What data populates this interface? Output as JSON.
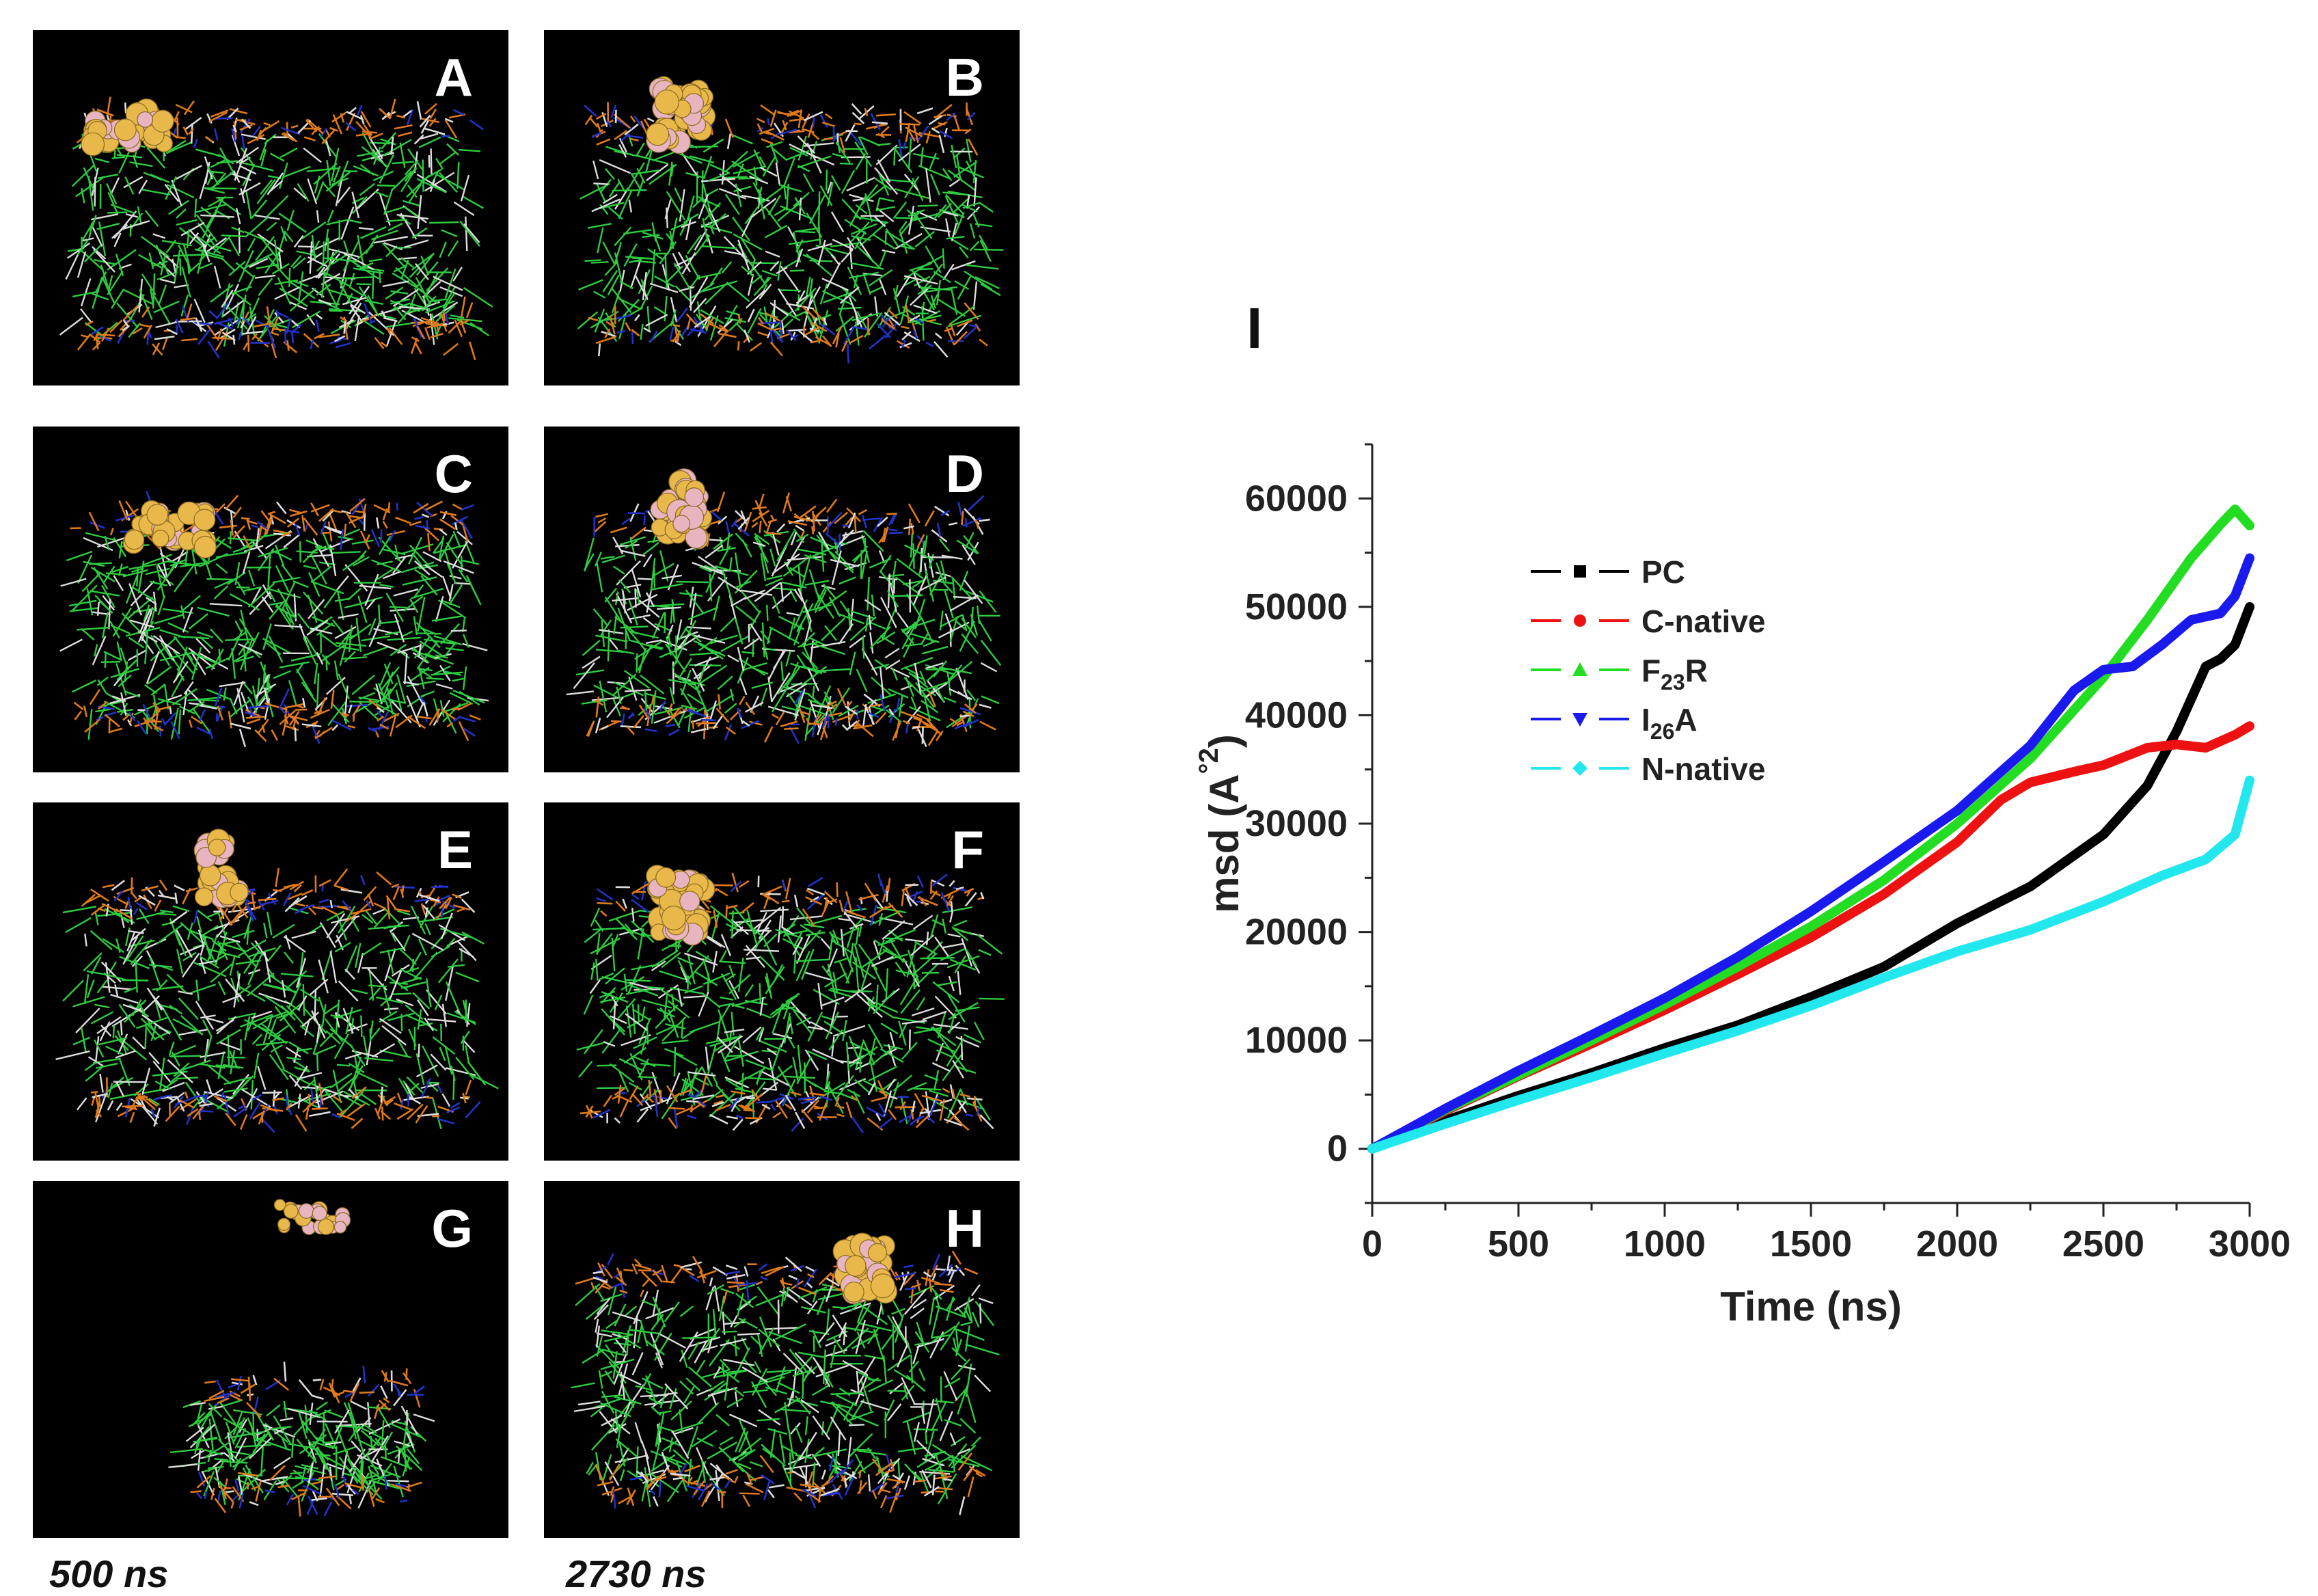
{
  "panels": [
    {
      "label": "A",
      "membrane": "large",
      "peptide": "left-top"
    },
    {
      "label": "B",
      "membrane": "large",
      "peptide": "top-left"
    },
    {
      "label": "C",
      "membrane": "large",
      "peptide": "left-top"
    },
    {
      "label": "D",
      "membrane": "large",
      "peptide": "top-left"
    },
    {
      "label": "E",
      "membrane": "large",
      "peptide": "top"
    },
    {
      "label": "F",
      "membrane": "large",
      "peptide": "top-left"
    },
    {
      "label": "G",
      "membrane": "small",
      "peptide": "detached"
    },
    {
      "label": "H",
      "membrane": "large",
      "peptide": "top-center"
    }
  ],
  "time_labels": {
    "left": "500 ns",
    "right": "2730 ns"
  },
  "chart_label": "I",
  "colors": {
    "lipid_tail": "#2ecc40",
    "lipid_head_orange": "#e07a1a",
    "lipid_head_blue": "#2233cc",
    "lipid_white": "#dddddd",
    "peptide_gold": "#e8b84a",
    "peptide_pink": "#e8b4c0"
  },
  "chart_data": {
    "type": "line",
    "title": "",
    "xlabel": "Time (ns)",
    "ylabel": "msd (Å²)",
    "ylabel_main": "msd (A",
    "ylabel_sup": "°2",
    "ylabel_close": ")",
    "xlim": [
      0,
      3000
    ],
    "ylim": [
      -5000,
      65000
    ],
    "xticks": [
      0,
      500,
      1000,
      1500,
      2000,
      2500,
      3000
    ],
    "yticks": [
      0,
      10000,
      20000,
      30000,
      40000,
      50000,
      60000
    ],
    "series": [
      {
        "name": "PC",
        "name_main": "PC",
        "name_sub": "",
        "name_after": "",
        "color": "#000000",
        "marker": "square",
        "points": [
          [
            0,
            0
          ],
          [
            250,
            2600
          ],
          [
            500,
            4900
          ],
          [
            750,
            7000
          ],
          [
            1000,
            9300
          ],
          [
            1250,
            11400
          ],
          [
            1500,
            14000
          ],
          [
            1750,
            16800
          ],
          [
            2000,
            20800
          ],
          [
            2250,
            24200
          ],
          [
            2500,
            29000
          ],
          [
            2650,
            33500
          ],
          [
            2750,
            38500
          ],
          [
            2850,
            44500
          ],
          [
            2900,
            45200
          ],
          [
            2950,
            46500
          ],
          [
            3000,
            50000
          ]
        ]
      },
      {
        "name": "C-native",
        "name_main": "C-native",
        "name_sub": "",
        "name_after": "",
        "color": "#ee1111",
        "marker": "circle",
        "points": [
          [
            0,
            0
          ],
          [
            250,
            3500
          ],
          [
            500,
            6700
          ],
          [
            750,
            9700
          ],
          [
            1000,
            12800
          ],
          [
            1250,
            16100
          ],
          [
            1500,
            19500
          ],
          [
            1750,
            23500
          ],
          [
            2000,
            28300
          ],
          [
            2150,
            32200
          ],
          [
            2250,
            33800
          ],
          [
            2400,
            34800
          ],
          [
            2500,
            35400
          ],
          [
            2650,
            37000
          ],
          [
            2750,
            37300
          ],
          [
            2850,
            37000
          ],
          [
            2950,
            38200
          ],
          [
            3000,
            39000
          ]
        ]
      },
      {
        "name": "F23R",
        "name_main": "F",
        "name_sub": "23",
        "name_after": "R",
        "color": "#22dd22",
        "marker": "triangle-up",
        "points": [
          [
            0,
            0
          ],
          [
            250,
            3600
          ],
          [
            500,
            6800
          ],
          [
            750,
            10000
          ],
          [
            1000,
            13300
          ],
          [
            1250,
            16800
          ],
          [
            1500,
            20500
          ],
          [
            1750,
            24800
          ],
          [
            2000,
            30000
          ],
          [
            2250,
            36000
          ],
          [
            2500,
            43500
          ],
          [
            2650,
            48800
          ],
          [
            2800,
            54500
          ],
          [
            2900,
            57600
          ],
          [
            2950,
            59000
          ],
          [
            3000,
            57500
          ]
        ]
      },
      {
        "name": "I26A",
        "name_main": "I",
        "name_sub": "26",
        "name_after": "A",
        "color": "#1a1aee",
        "marker": "triangle-down",
        "points": [
          [
            0,
            0
          ],
          [
            250,
            3700
          ],
          [
            500,
            7200
          ],
          [
            750,
            10500
          ],
          [
            1000,
            13900
          ],
          [
            1250,
            17700
          ],
          [
            1500,
            21900
          ],
          [
            1750,
            26500
          ],
          [
            2000,
            31200
          ],
          [
            2250,
            37200
          ],
          [
            2400,
            42300
          ],
          [
            2500,
            44200
          ],
          [
            2600,
            44500
          ],
          [
            2700,
            46500
          ],
          [
            2800,
            48800
          ],
          [
            2900,
            49400
          ],
          [
            2950,
            51000
          ],
          [
            3000,
            54500
          ]
        ]
      },
      {
        "name": "N-native",
        "name_main": "N-native",
        "name_sub": "",
        "name_after": "",
        "color": "#22e8ee",
        "marker": "diamond",
        "points": [
          [
            0,
            0
          ],
          [
            250,
            2300
          ],
          [
            500,
            4500
          ],
          [
            750,
            6600
          ],
          [
            1000,
            8800
          ],
          [
            1250,
            10900
          ],
          [
            1500,
            13200
          ],
          [
            1750,
            15800
          ],
          [
            2000,
            18200
          ],
          [
            2250,
            20200
          ],
          [
            2500,
            22800
          ],
          [
            2700,
            25200
          ],
          [
            2850,
            26700
          ],
          [
            2950,
            29000
          ],
          [
            3000,
            34000
          ]
        ]
      }
    ]
  }
}
